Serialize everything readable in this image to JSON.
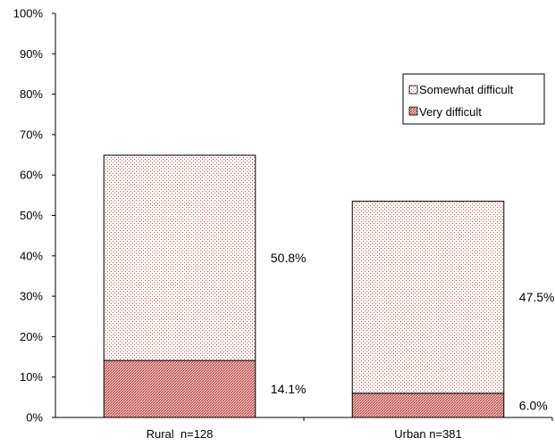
{
  "chart_data": {
    "type": "bar",
    "stacked": true,
    "categories": [
      "Rural  n=128",
      "Urban n=381"
    ],
    "series": [
      {
        "name": "Very difficult",
        "values": [
          14.1,
          6.0
        ],
        "labels": [
          "14.1%",
          "6.0%"
        ],
        "color": "#c0504d",
        "fill": "dense-hatch"
      },
      {
        "name": "Somewhat difficult",
        "values": [
          50.8,
          47.5
        ],
        "labels": [
          "50.8%",
          "47.5%"
        ],
        "color": "#c0504d",
        "fill": "sparse-dots"
      }
    ],
    "y_ticks": [
      "0%",
      "10%",
      "20%",
      "30%",
      "40%",
      "50%",
      "60%",
      "70%",
      "80%",
      "90%",
      "100%"
    ],
    "ylim": [
      0,
      100
    ],
    "title": "",
    "xlabel": "",
    "ylabel": "",
    "legend_position": "top-right",
    "legend_order": [
      "Somewhat difficult",
      "Very difficult"
    ],
    "grid": false
  }
}
